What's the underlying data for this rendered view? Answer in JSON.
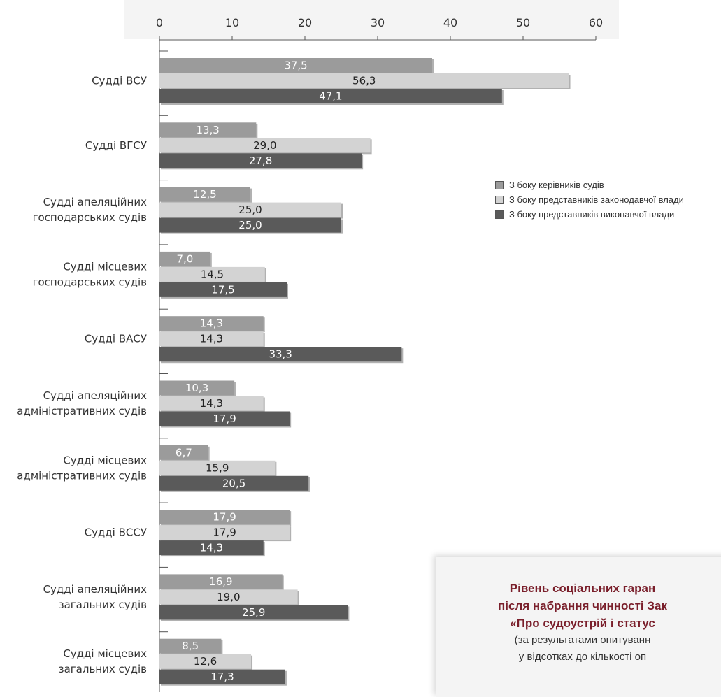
{
  "chart_data": {
    "type": "bar",
    "orientation": "horizontal",
    "xlim": [
      0,
      60
    ],
    "ticks": [
      "0",
      "10",
      "20",
      "30",
      "40",
      "50",
      "60"
    ],
    "categories": [
      "Судді ВСУ",
      "Судді ВГСУ",
      "Судді апеляційних господарських судів",
      "Судді місцевих господарських судів",
      "Судді ВАСУ",
      "Судді апеляційних адміністративних судів",
      "Судді місцевих адміністративних судів",
      "Судді ВССУ",
      "Судді апеляційних загальних судів",
      "Судді місцевих загальних судів"
    ],
    "category_lines": [
      [
        "Судді ВСУ"
      ],
      [
        "Судді ВГСУ"
      ],
      [
        "Судді апеляційних",
        "господарських судів"
      ],
      [
        "Судді місцевих",
        "господарських судів"
      ],
      [
        "Судді ВАСУ"
      ],
      [
        "Судді апеляційних",
        "адміністративних судів"
      ],
      [
        "Судді місцевих",
        "адміністративних судів"
      ],
      [
        "Судді ВССУ"
      ],
      [
        "Судді апеляційних",
        "загальних судів"
      ],
      [
        "Судді місцевих",
        "загальних судів"
      ]
    ],
    "series": [
      {
        "name": "З боку керівників судів",
        "color": "#9b9b9b",
        "label_color": "#ffffff",
        "values": [
          37.5,
          13.3,
          12.5,
          7.0,
          14.3,
          10.3,
          6.7,
          17.9,
          16.9,
          8.5
        ],
        "value_labels": [
          "37,5",
          "13,3",
          "12,5",
          "7,0",
          "14,3",
          "10,3",
          "6,7",
          "17,9",
          "16,9",
          "8,5"
        ]
      },
      {
        "name": "З боку представників законодавчої влади",
        "color": "#d3d3d3",
        "label_color": "#222222",
        "values": [
          56.3,
          29.0,
          25.0,
          14.5,
          14.3,
          14.3,
          15.9,
          17.9,
          19.0,
          12.6
        ],
        "value_labels": [
          "56,3",
          "29,0",
          "25,0",
          "14,5",
          "14,3",
          "14,3",
          "15,9",
          "17,9",
          "19,0",
          "12,6"
        ]
      },
      {
        "name": "З боку представників виконавчої влади",
        "color": "#5a5a5a",
        "label_color": "#ffffff",
        "values": [
          47.1,
          27.8,
          25.0,
          17.5,
          33.3,
          17.9,
          20.5,
          14.3,
          25.9,
          17.3
        ],
        "value_labels": [
          "47,1",
          "27,8",
          "25,0",
          "17,5",
          "33,3",
          "17,9",
          "20,5",
          "14,3",
          "25,9",
          "17,3"
        ]
      }
    ],
    "legend_position": "right"
  },
  "caption": {
    "title_lines": [
      "Рівень соціальних гаран",
      "після набрання чинності Зак",
      "«Про судоустрій і статус"
    ],
    "sub_lines": [
      "(за результатами опитуванн",
      "у відсотках до кількості оп"
    ]
  }
}
